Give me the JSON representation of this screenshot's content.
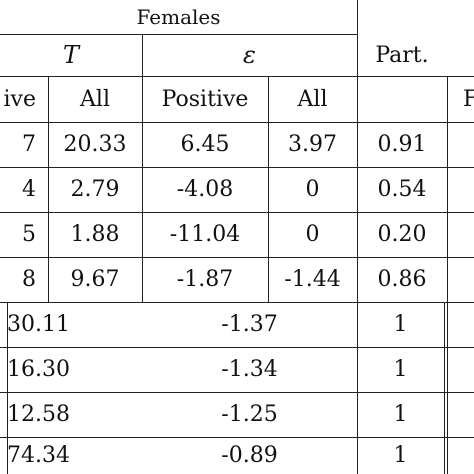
{
  "header": {
    "group": "Females",
    "T_symbol": "T",
    "eps_symbol": "ε",
    "part_label": "Part.",
    "sub_positive_clipped": "ive",
    "sub_all_1": "All",
    "sub_positive": "Positive",
    "sub_all_2": "All",
    "next_group_clipped": "F"
  },
  "rows4": [
    {
      "pos": "7",
      "all": "20.33",
      "eps_pos": "6.45",
      "eps_all": "3.97",
      "part": "0.91"
    },
    {
      "pos": "4",
      "all": "2.79",
      "eps_pos": "-4.08",
      "eps_all": "0",
      "part": "0.54"
    },
    {
      "pos": "5",
      "all": "1.88",
      "eps_pos": "-11.04",
      "eps_all": "0",
      "part": "0.20"
    },
    {
      "pos": "8",
      "all": "9.67",
      "eps_pos": "-1.87",
      "eps_all": "-1.44",
      "part": "0.86"
    }
  ],
  "rows3": [
    {
      "t": "30.11",
      "eps": "-1.37",
      "part": "1"
    },
    {
      "t": "16.30",
      "eps": "-1.34",
      "part": "1"
    },
    {
      "t": "12.58",
      "eps": "-1.25",
      "part": "1"
    },
    {
      "t": "74.34",
      "eps": "-0.89",
      "part": "1"
    }
  ]
}
